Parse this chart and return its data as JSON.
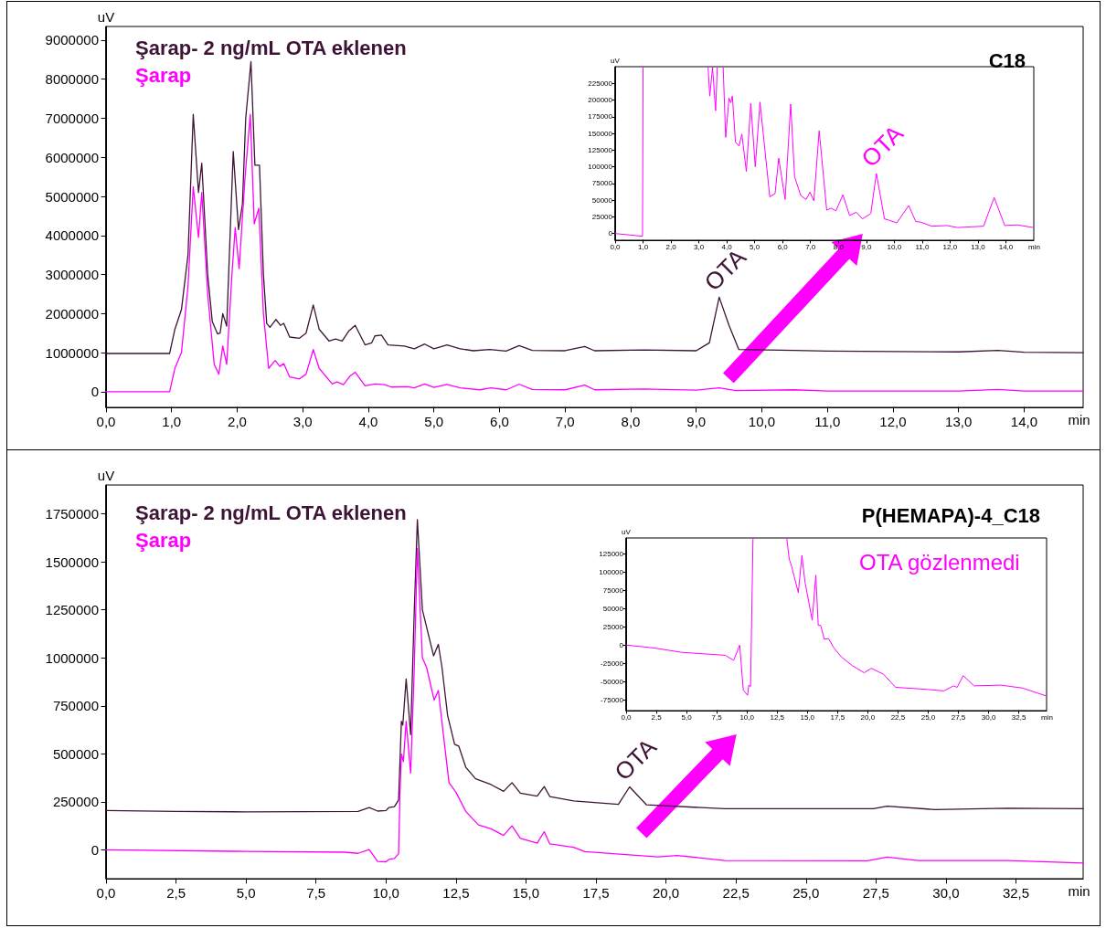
{
  "chart_data": [
    {
      "type": "line",
      "title": "C18",
      "xlabel": "min",
      "ylabel": "uV",
      "legend": "top left",
      "grid": false,
      "marker": "none",
      "xlim": [
        0,
        14.9
      ],
      "xticks": [
        {
          "value": 0,
          "label": "0,0"
        },
        {
          "value": 1,
          "label": "1,0"
        },
        {
          "value": 2,
          "label": "2,0"
        },
        {
          "value": 3,
          "label": "3,0"
        },
        {
          "value": 4,
          "label": "4,0"
        },
        {
          "value": 5,
          "label": "5,0"
        },
        {
          "value": 6,
          "label": "6,0"
        },
        {
          "value": 7,
          "label": "7,0"
        },
        {
          "value": 8,
          "label": "8,0"
        },
        {
          "value": 9,
          "label": "9,0"
        },
        {
          "value": 10,
          "label": "10,0"
        },
        {
          "value": 11,
          "label": "11,0"
        },
        {
          "value": 12,
          "label": "12,0"
        },
        {
          "value": 13,
          "label": "13,0"
        },
        {
          "value": 14,
          "label": "14,0"
        }
      ],
      "ylim": [
        -400000,
        9350000
      ],
      "yticks": [
        0,
        1000000,
        2000000,
        3000000,
        4000000,
        5000000,
        6000000,
        7000000,
        8000000,
        9000000
      ],
      "annotations": [
        {
          "text": "OTA",
          "x": 9.35,
          "y": 2420000
        }
      ],
      "series": [
        {
          "name": "Şarap- 2 ng/mL OTA eklenen",
          "color": "#3d1435",
          "x": [
            0,
            0.97,
            1.05,
            1.15,
            1.25,
            1.33,
            1.41,
            1.46,
            1.55,
            1.62,
            1.7,
            1.74,
            1.78,
            1.84,
            1.94,
            2.02,
            2.08,
            2.13,
            2.21,
            2.27,
            2.34,
            2.4,
            2.45,
            2.5,
            2.59,
            2.66,
            2.71,
            2.8,
            2.95,
            3.05,
            3.16,
            3.25,
            3.4,
            3.5,
            3.6,
            3.7,
            3.8,
            3.95,
            4.05,
            4.1,
            4.2,
            4.3,
            4.55,
            4.7,
            4.86,
            5.0,
            5.2,
            5.4,
            5.6,
            5.85,
            6.1,
            6.3,
            6.5,
            7.0,
            7.3,
            7.45,
            8.2,
            9.0,
            9.2,
            9.35,
            9.5,
            9.65,
            10.5,
            11.0,
            13.0,
            13.6,
            14.0,
            14.9
          ],
          "values": [
            980000,
            980000,
            1600000,
            2100000,
            3500000,
            7100000,
            5100000,
            5850000,
            3000000,
            1800000,
            1480000,
            1500000,
            2000000,
            1680000,
            6150000,
            4150000,
            4800000,
            7000000,
            8450000,
            5800000,
            5800000,
            3000000,
            1750000,
            1650000,
            1850000,
            1700000,
            1750000,
            1400000,
            1370000,
            1500000,
            2220000,
            1600000,
            1300000,
            1350000,
            1300000,
            1550000,
            1700000,
            1200000,
            1250000,
            1430000,
            1450000,
            1200000,
            1170000,
            1100000,
            1220000,
            1100000,
            1200000,
            1100000,
            1050000,
            1080000,
            1040000,
            1180000,
            1060000,
            1050000,
            1160000,
            1050000,
            1070000,
            1050000,
            1250000,
            2420000,
            1700000,
            1080000,
            1060000,
            1040000,
            1020000,
            1060000,
            1010000,
            1000000
          ]
        },
        {
          "name": "Şarap",
          "color": "#ff00ff",
          "x": [
            0,
            0.97,
            1.05,
            1.15,
            1.25,
            1.33,
            1.41,
            1.46,
            1.55,
            1.65,
            1.72,
            1.78,
            1.84,
            1.92,
            1.97,
            2.03,
            2.12,
            2.2,
            2.26,
            2.33,
            2.4,
            2.48,
            2.58,
            2.65,
            2.71,
            2.8,
            2.95,
            3.05,
            3.16,
            3.25,
            3.45,
            3.52,
            3.62,
            3.72,
            3.8,
            3.95,
            4.1,
            4.25,
            4.35,
            4.6,
            4.7,
            4.86,
            5.0,
            5.2,
            5.4,
            5.7,
            5.87,
            6.1,
            6.3,
            6.5,
            7.0,
            7.3,
            7.45,
            8.2,
            9.0,
            9.35,
            9.6,
            10.5,
            11.0,
            13.0,
            13.6,
            14.0,
            14.9
          ],
          "values": [
            0,
            0,
            600000,
            1000000,
            2700000,
            5250000,
            3950000,
            5100000,
            2500000,
            700000,
            450000,
            1170000,
            700000,
            3000000,
            4200000,
            3150000,
            5500000,
            7100000,
            4300000,
            4700000,
            2000000,
            600000,
            800000,
            650000,
            720000,
            380000,
            330000,
            450000,
            1080000,
            600000,
            200000,
            250000,
            180000,
            400000,
            500000,
            150000,
            200000,
            180000,
            120000,
            130000,
            100000,
            200000,
            110000,
            190000,
            100000,
            50000,
            100000,
            50000,
            190000,
            60000,
            50000,
            170000,
            50000,
            70000,
            40000,
            100000,
            30000,
            50000,
            20000,
            20000,
            60000,
            20000,
            20000
          ]
        }
      ]
    },
    {
      "type": "line",
      "xlabel": "min",
      "ylabel": "uV",
      "grid": false,
      "marker": "none",
      "xlim": [
        0,
        15
      ],
      "xticks": [
        {
          "value": 0,
          "label": "0,0"
        },
        {
          "value": 1,
          "label": "1,0"
        },
        {
          "value": 2,
          "label": "2,0"
        },
        {
          "value": 3,
          "label": "3,0"
        },
        {
          "value": 4,
          "label": "4,0"
        },
        {
          "value": 5,
          "label": "5,0"
        },
        {
          "value": 6,
          "label": "6,0"
        },
        {
          "value": 7,
          "label": "7,0"
        },
        {
          "value": 8,
          "label": "8,0"
        },
        {
          "value": 9,
          "label": "9,0"
        },
        {
          "value": 10,
          "label": "10,0"
        },
        {
          "value": 11,
          "label": "11,0"
        },
        {
          "value": 12,
          "label": "12,0"
        },
        {
          "value": 13,
          "label": "13,0"
        },
        {
          "value": 14,
          "label": "14,0"
        }
      ],
      "ylim": [
        -10000,
        250000
      ],
      "yticks": [
        0,
        25000,
        50000,
        75000,
        100000,
        125000,
        150000,
        175000,
        200000,
        225000
      ],
      "annotations": [
        {
          "text": "OTA",
          "x": 9.36,
          "y": 90000
        }
      ],
      "series": [
        {
          "color": "#ff00ff",
          "x": [
            0,
            0.5,
            0.95,
            0.98,
            1.0,
            2.0,
            3.33,
            3.39,
            3.49,
            3.6,
            3.66,
            3.8,
            3.87,
            3.96,
            4.08,
            4.14,
            4.2,
            4.31,
            4.44,
            4.54,
            4.7,
            4.86,
            5.02,
            5.19,
            5.54,
            5.73,
            5.86,
            6.09,
            6.29,
            6.43,
            6.65,
            6.84,
            6.98,
            7.12,
            7.31,
            7.58,
            7.74,
            7.91,
            8.16,
            8.4,
            8.64,
            8.86,
            9.16,
            9.36,
            9.65,
            9.81,
            10.09,
            10.52,
            10.77,
            10.96,
            11.34,
            11.89,
            12.27,
            13.2,
            13.58,
            13.96,
            14.4,
            14.98
          ],
          "values": [
            0,
            -2000,
            -4000,
            -4000,
            249000,
            null,
            249000,
            206000,
            249000,
            184000,
            249000,
            null,
            249000,
            144000,
            203000,
            196000,
            206000,
            137000,
            131000,
            149000,
            93000,
            195000,
            100000,
            197000,
            55000,
            60000,
            113000,
            51000,
            194000,
            85000,
            57000,
            51000,
            62000,
            49000,
            154000,
            35000,
            38000,
            34000,
            58000,
            27000,
            32000,
            22000,
            30000,
            90000,
            22000,
            20000,
            16000,
            42000,
            18000,
            17000,
            11000,
            12000,
            9000,
            11000,
            54000,
            12000,
            13000,
            9000
          ]
        }
      ]
    },
    {
      "type": "line",
      "title": "P(HEMAPA)-4_C18",
      "xlabel": "min",
      "ylabel": "uV",
      "legend": "top left",
      "grid": false,
      "marker": "none",
      "xlim": [
        0,
        34.9
      ],
      "xticks": [
        {
          "value": 0,
          "label": "0,0"
        },
        {
          "value": 2.5,
          "label": "2,5"
        },
        {
          "value": 5,
          "label": "5,0"
        },
        {
          "value": 7.5,
          "label": "7,5"
        },
        {
          "value": 10,
          "label": "10,0"
        },
        {
          "value": 12.5,
          "label": "12,5"
        },
        {
          "value": 15,
          "label": "15,0"
        },
        {
          "value": 17.5,
          "label": "17,5"
        },
        {
          "value": 20,
          "label": "20,0"
        },
        {
          "value": 22.5,
          "label": "22,5"
        },
        {
          "value": 25,
          "label": "25,0"
        },
        {
          "value": 27.5,
          "label": "27,5"
        },
        {
          "value": 30,
          "label": "30,0"
        },
        {
          "value": 32.5,
          "label": "32,5"
        }
      ],
      "ylim": [
        -150000,
        1900000
      ],
      "yticks": [
        0,
        250000,
        500000,
        750000,
        1000000,
        1250000,
        1500000,
        1750000
      ],
      "annotations": [
        {
          "text": "OTA",
          "x": 18.7,
          "y": 328000
        }
      ],
      "series": [
        {
          "name": "Şarap- 2 ng/mL OTA eklenen",
          "color": "#3d1435",
          "x": [
            0,
            2.5,
            5,
            9.0,
            9.4,
            9.7,
            10.0,
            10.1,
            10.3,
            10.45,
            10.55,
            10.6,
            10.72,
            10.88,
            11.0,
            11.12,
            11.3,
            11.45,
            11.7,
            11.87,
            12.0,
            12.2,
            12.45,
            12.6,
            12.85,
            13.2,
            13.75,
            14.2,
            14.5,
            14.8,
            15.4,
            15.65,
            15.85,
            16.7,
            18.3,
            18.7,
            19.3,
            22.1,
            27.4,
            27.9,
            29.6,
            32.2,
            34.9
          ],
          "values": [
            205000,
            200000,
            198000,
            200000,
            220000,
            202000,
            205000,
            220000,
            225000,
            260000,
            670000,
            650000,
            890000,
            600000,
            1200000,
            1720000,
            1250000,
            1160000,
            1010000,
            1070000,
            950000,
            700000,
            550000,
            540000,
            430000,
            370000,
            340000,
            305000,
            350000,
            295000,
            280000,
            330000,
            278000,
            255000,
            237000,
            328000,
            235000,
            214000,
            214000,
            228000,
            210000,
            217000,
            214000
          ]
        },
        {
          "name": "Şarap",
          "color": "#ff00ff",
          "x": [
            0,
            5,
            8.5,
            9.0,
            9.4,
            9.7,
            10.0,
            10.1,
            10.3,
            10.45,
            10.5,
            10.55,
            10.62,
            10.72,
            10.88,
            11.0,
            11.12,
            11.3,
            11.45,
            11.72,
            11.87,
            12.05,
            12.25,
            12.5,
            12.85,
            13.3,
            13.75,
            14.2,
            14.5,
            14.8,
            15.4,
            15.65,
            15.85,
            16.7,
            17.1,
            19.7,
            20.4,
            22.1,
            27.2,
            27.9,
            29.0,
            32.2,
            34.9
          ],
          "values": [
            0,
            -8000,
            -12000,
            -18000,
            2000,
            -60000,
            -62000,
            -50000,
            -45000,
            -20000,
            300000,
            500000,
            460000,
            670000,
            400000,
            900000,
            1570000,
            1000000,
            950000,
            780000,
            830000,
            600000,
            350000,
            300000,
            200000,
            130000,
            110000,
            75000,
            125000,
            60000,
            35000,
            95000,
            31000,
            13000,
            -9000,
            -36000,
            -29000,
            -55000,
            -57000,
            -38000,
            -55000,
            -55000,
            -69000
          ]
        }
      ]
    },
    {
      "type": "line",
      "xlabel": "min",
      "ylabel": "uV",
      "grid": false,
      "marker": "none",
      "xlim": [
        0,
        34.8
      ],
      "xticks": [
        {
          "value": 0,
          "label": "0,0"
        },
        {
          "value": 2.5,
          "label": "2,5"
        },
        {
          "value": 5,
          "label": "5,0"
        },
        {
          "value": 7.5,
          "label": "7,5"
        },
        {
          "value": 10,
          "label": "10,0"
        },
        {
          "value": 12.5,
          "label": "12,5"
        },
        {
          "value": 15,
          "label": "15,0"
        },
        {
          "value": 17.5,
          "label": "17,5"
        },
        {
          "value": 20,
          "label": "20,0"
        },
        {
          "value": 22.5,
          "label": "22,5"
        },
        {
          "value": 25,
          "label": "25,0"
        },
        {
          "value": 27.5,
          "label": "27,5"
        },
        {
          "value": 30,
          "label": "30,0"
        },
        {
          "value": 32.5,
          "label": "32,5"
        }
      ],
      "ylim": [
        -90000,
        147000
      ],
      "yticks": [
        -75000,
        -50000,
        -25000,
        0,
        25000,
        50000,
        75000,
        100000,
        125000
      ],
      "annotations": [
        "OTA gözlenmedi"
      ],
      "series": [
        {
          "color": "#ff00ff",
          "x": [
            0,
            2.3,
            4.6,
            8.2,
            8.9,
            9.4,
            9.7,
            10.05,
            10.15,
            10.3,
            10.5,
            12.0,
            13.3,
            13.5,
            13.7,
            14.25,
            14.55,
            14.8,
            15.4,
            15.7,
            15.9,
            16.1,
            16.4,
            16.75,
            17.2,
            17.8,
            18.7,
            19.7,
            20.3,
            21.3,
            22.3,
            25.0,
            26.3,
            27.1,
            27.4,
            27.9,
            28.8,
            31.0,
            32.8,
            34.8
          ],
          "values": [
            0,
            -4000,
            -10000,
            -14000,
            -21000,
            0,
            -62000,
            -69000,
            -55000,
            -57000,
            146000,
            null,
            146000,
            118000,
            108000,
            72000,
            123000,
            87000,
            34000,
            96000,
            27000,
            27000,
            8000,
            9000,
            -4000,
            -16000,
            -28000,
            -38000,
            -32000,
            -40000,
            -58000,
            -61000,
            -63000,
            -56000,
            -58000,
            -42000,
            -56000,
            -55000,
            -59000,
            -70000
          ]
        }
      ]
    }
  ]
}
